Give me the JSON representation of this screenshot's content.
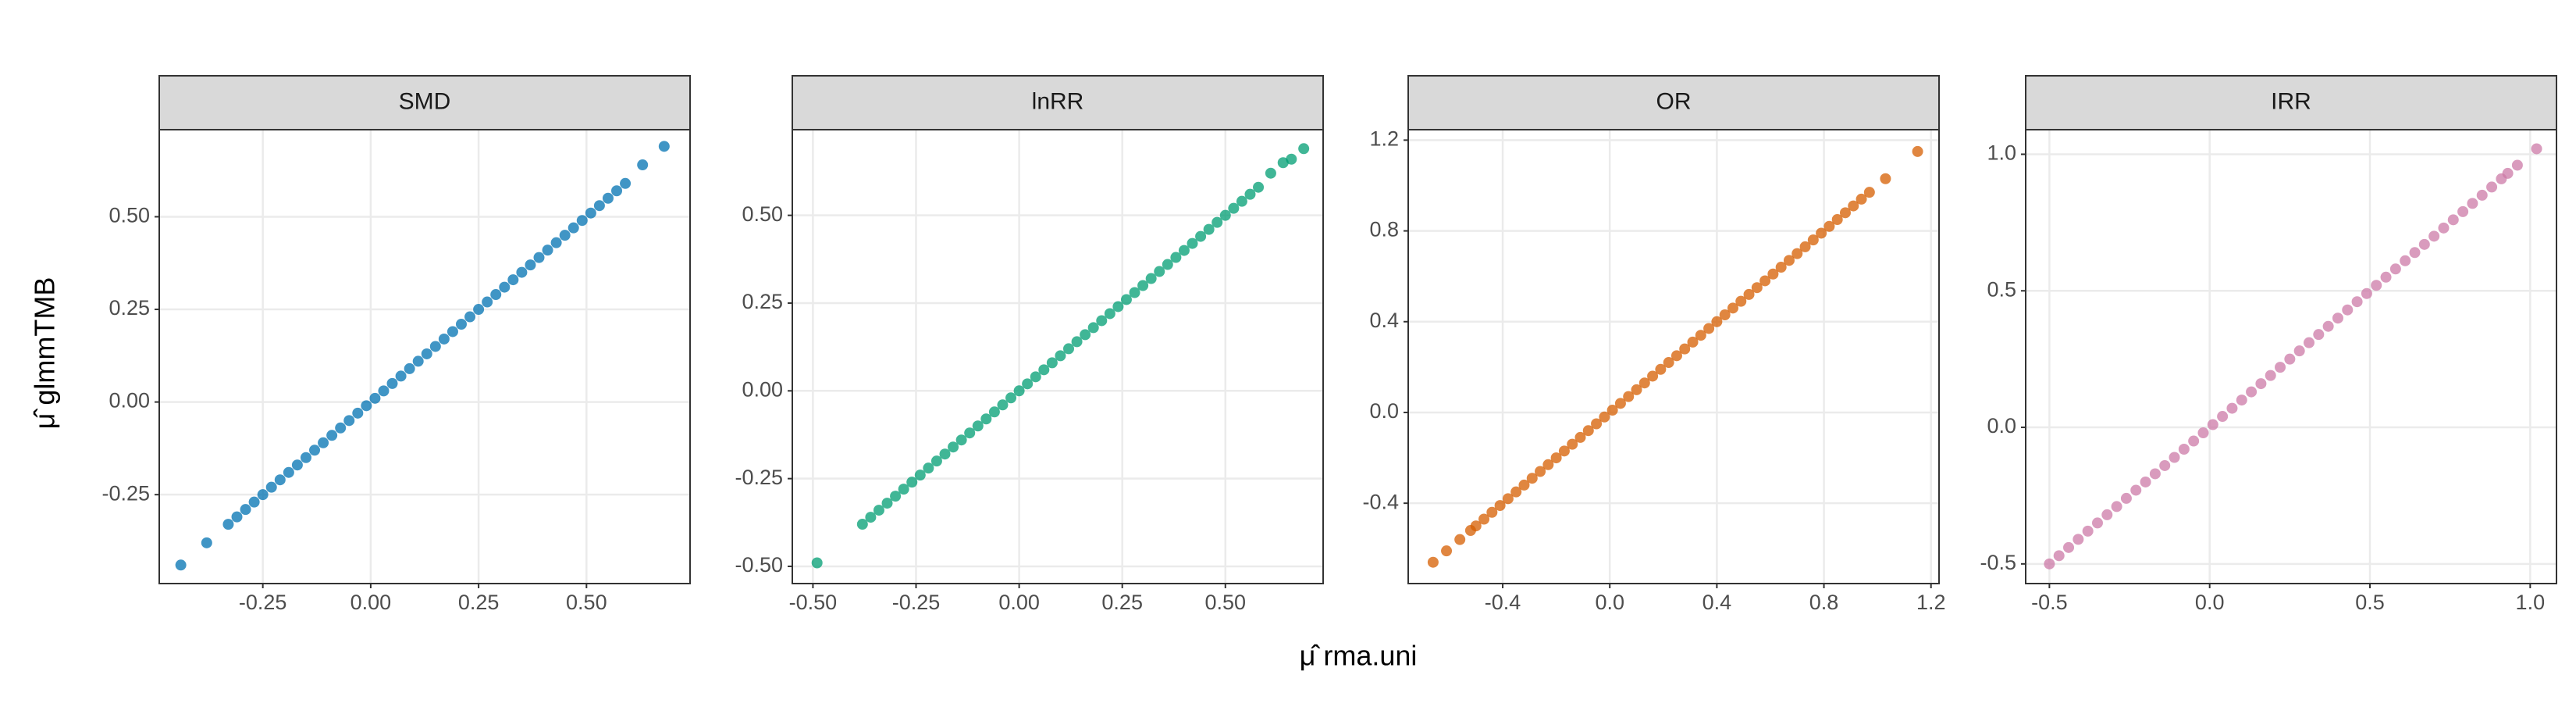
{
  "axis_labels": {
    "x": "μ̂ rma.uni",
    "y": "μ̂ glmmTMB"
  },
  "chart_data": [
    {
      "type": "scatter",
      "title": "SMD",
      "color": "#0072B2",
      "x": [
        -0.44,
        -0.38,
        -0.33,
        -0.31,
        -0.29,
        -0.27,
        -0.25,
        -0.23,
        -0.21,
        -0.19,
        -0.17,
        -0.15,
        -0.13,
        -0.11,
        -0.09,
        -0.07,
        -0.05,
        -0.03,
        -0.01,
        0.01,
        0.03,
        0.05,
        0.07,
        0.09,
        0.11,
        0.13,
        0.15,
        0.17,
        0.19,
        0.21,
        0.23,
        0.25,
        0.27,
        0.29,
        0.31,
        0.33,
        0.35,
        0.37,
        0.39,
        0.41,
        0.43,
        0.45,
        0.47,
        0.49,
        0.51,
        0.53,
        0.55,
        0.57,
        0.59,
        0.63,
        0.68
      ],
      "y": [
        -0.44,
        -0.38,
        -0.33,
        -0.31,
        -0.29,
        -0.27,
        -0.25,
        -0.23,
        -0.21,
        -0.19,
        -0.17,
        -0.15,
        -0.13,
        -0.11,
        -0.09,
        -0.07,
        -0.05,
        -0.03,
        -0.01,
        0.01,
        0.03,
        0.05,
        0.07,
        0.09,
        0.11,
        0.13,
        0.15,
        0.17,
        0.19,
        0.21,
        0.23,
        0.25,
        0.27,
        0.29,
        0.31,
        0.33,
        0.35,
        0.37,
        0.39,
        0.41,
        0.43,
        0.45,
        0.47,
        0.49,
        0.51,
        0.53,
        0.55,
        0.57,
        0.59,
        0.64,
        0.69
      ],
      "xlim": [
        -0.49,
        0.74
      ],
      "ylim": [
        -0.49,
        0.735
      ],
      "xticks": [
        -0.25,
        {
          "value": 0,
          "label": "0.00"
        },
        0.25,
        {
          "value": 0.5,
          "label": "0.50"
        }
      ],
      "yticks": [
        -0.25,
        {
          "value": 0,
          "label": "0.00"
        },
        0.25,
        {
          "value": 0.5,
          "label": "0.50"
        }
      ]
    },
    {
      "type": "scatter",
      "title": "lnRR",
      "color": "#009E73",
      "x": [
        -0.49,
        -0.38,
        -0.36,
        -0.34,
        -0.32,
        -0.3,
        -0.28,
        -0.26,
        -0.24,
        -0.22,
        -0.2,
        -0.18,
        -0.16,
        -0.14,
        -0.12,
        -0.1,
        -0.08,
        -0.06,
        -0.04,
        -0.02,
        0,
        0.02,
        0.04,
        0.06,
        0.08,
        0.1,
        0.12,
        0.14,
        0.16,
        0.18,
        0.2,
        0.22,
        0.24,
        0.26,
        0.28,
        0.3,
        0.32,
        0.34,
        0.36,
        0.38,
        0.4,
        0.42,
        0.44,
        0.46,
        0.48,
        0.5,
        0.52,
        0.54,
        0.56,
        0.58,
        0.61,
        0.64,
        0.66,
        0.69
      ],
      "y": [
        -0.49,
        -0.38,
        -0.36,
        -0.34,
        -0.32,
        -0.3,
        -0.28,
        -0.26,
        -0.24,
        -0.22,
        -0.2,
        -0.18,
        -0.16,
        -0.14,
        -0.12,
        -0.1,
        -0.08,
        -0.06,
        -0.04,
        -0.02,
        0,
        0.02,
        0.04,
        0.06,
        0.08,
        0.1,
        0.12,
        0.14,
        0.16,
        0.18,
        0.2,
        0.22,
        0.24,
        0.26,
        0.28,
        0.3,
        0.32,
        0.34,
        0.36,
        0.38,
        0.4,
        0.42,
        0.44,
        0.46,
        0.48,
        0.5,
        0.52,
        0.54,
        0.56,
        0.58,
        0.62,
        0.65,
        0.66,
        0.69
      ],
      "xlim": [
        -0.55,
        0.737
      ],
      "ylim": [
        -0.549,
        0.744
      ],
      "xticks": [
        {
          "value": -0.5,
          "label": "-0.50"
        },
        -0.25,
        {
          "value": 0,
          "label": "0.00"
        },
        0.25,
        {
          "value": 0.5,
          "label": "0.50"
        }
      ],
      "yticks": [
        {
          "value": -0.5,
          "label": "-0.50"
        },
        -0.25,
        {
          "value": 0,
          "label": "0.00"
        },
        0.25,
        {
          "value": 0.5,
          "label": "0.50"
        }
      ]
    },
    {
      "type": "scatter",
      "title": "OR",
      "color": "#D55E00",
      "x": [
        -0.66,
        -0.61,
        -0.56,
        -0.52,
        -0.5,
        -0.47,
        -0.44,
        -0.41,
        -0.38,
        -0.35,
        -0.32,
        -0.29,
        -0.26,
        -0.23,
        -0.2,
        -0.17,
        -0.14,
        -0.11,
        -0.08,
        -0.05,
        -0.02,
        0.01,
        0.04,
        0.07,
        0.1,
        0.13,
        0.16,
        0.19,
        0.22,
        0.25,
        0.28,
        0.31,
        0.34,
        0.37,
        0.4,
        0.43,
        0.46,
        0.49,
        0.52,
        0.55,
        0.58,
        0.61,
        0.64,
        0.67,
        0.7,
        0.73,
        0.76,
        0.79,
        0.82,
        0.85,
        0.88,
        0.91,
        0.94,
        0.97,
        1.03,
        1.15
      ],
      "y": [
        -0.66,
        -0.61,
        -0.56,
        -0.52,
        -0.5,
        -0.47,
        -0.44,
        -0.41,
        -0.38,
        -0.35,
        -0.32,
        -0.29,
        -0.26,
        -0.23,
        -0.2,
        -0.17,
        -0.14,
        -0.11,
        -0.08,
        -0.05,
        -0.02,
        0.01,
        0.04,
        0.07,
        0.1,
        0.13,
        0.16,
        0.19,
        0.22,
        0.25,
        0.28,
        0.31,
        0.34,
        0.37,
        0.4,
        0.43,
        0.46,
        0.49,
        0.52,
        0.55,
        0.58,
        0.61,
        0.64,
        0.67,
        0.7,
        0.73,
        0.76,
        0.79,
        0.82,
        0.85,
        0.88,
        0.91,
        0.94,
        0.97,
        1.03,
        1.15
      ],
      "xlim": [
        -0.753,
        1.23
      ],
      "ylim": [
        -0.754,
        1.246
      ],
      "xticks": [
        -0.4,
        {
          "value": 0,
          "label": "0.0"
        },
        0.4,
        0.8,
        1.2
      ],
      "yticks": [
        -0.4,
        {
          "value": 0,
          "label": "0.0"
        },
        0.4,
        0.8,
        1.2
      ]
    },
    {
      "type": "scatter",
      "title": "IRR",
      "color": "#CC79A7",
      "x": [
        -0.5,
        -0.47,
        -0.44,
        -0.41,
        -0.38,
        -0.35,
        -0.32,
        -0.29,
        -0.26,
        -0.23,
        -0.2,
        -0.17,
        -0.14,
        -0.11,
        -0.08,
        -0.05,
        -0.02,
        0.01,
        0.04,
        0.07,
        0.1,
        0.13,
        0.16,
        0.19,
        0.22,
        0.25,
        0.28,
        0.31,
        0.34,
        0.37,
        0.4,
        0.43,
        0.46,
        0.49,
        0.52,
        0.55,
        0.58,
        0.61,
        0.64,
        0.67,
        0.7,
        0.73,
        0.76,
        0.79,
        0.82,
        0.85,
        0.88,
        0.91,
        0.93,
        0.96,
        1.02
      ],
      "y": [
        -0.5,
        -0.47,
        -0.44,
        -0.41,
        -0.38,
        -0.35,
        -0.32,
        -0.29,
        -0.26,
        -0.23,
        -0.2,
        -0.17,
        -0.14,
        -0.11,
        -0.08,
        -0.05,
        -0.02,
        0.01,
        0.04,
        0.07,
        0.1,
        0.13,
        0.16,
        0.19,
        0.22,
        0.25,
        0.28,
        0.31,
        0.34,
        0.37,
        0.4,
        0.43,
        0.46,
        0.49,
        0.52,
        0.55,
        0.58,
        0.61,
        0.64,
        0.67,
        0.7,
        0.73,
        0.76,
        0.79,
        0.82,
        0.85,
        0.88,
        0.91,
        0.93,
        0.96,
        1.02
      ],
      "xlim": [
        -0.574,
        1.082
      ],
      "ylim": [
        -0.572,
        1.09
      ],
      "xticks": [
        -0.5,
        {
          "value": 0,
          "label": "0.0"
        },
        0.5,
        {
          "value": 1,
          "label": "1.0"
        }
      ],
      "yticks": [
        -0.5,
        {
          "value": 0,
          "label": "0.0"
        },
        0.5,
        {
          "value": 1,
          "label": "1.0"
        }
      ]
    }
  ]
}
